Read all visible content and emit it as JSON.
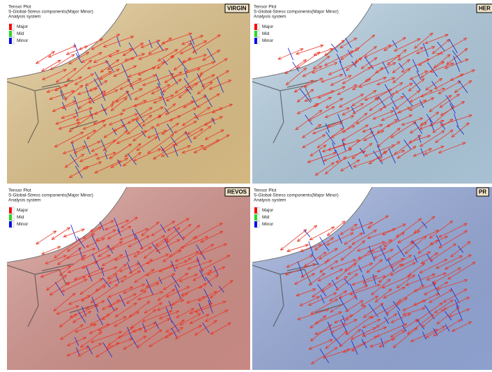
{
  "panels": [
    {
      "label": "VIRGIN",
      "color": "#e6c88c",
      "title": "Tensor Plot",
      "subtitle": "S-Global-Stress components(Major Minor)",
      "system": "Analysis system",
      "legend": [
        "Major",
        "Mid",
        "Minor"
      ]
    },
    {
      "label": "HER",
      "color": "#b6d2e6",
      "title": "Tensor Plot",
      "subtitle": "S-Global-Stress components(Major Minor)",
      "system": "Analysis system",
      "legend": [
        "Major",
        "Mid",
        "Minor"
      ]
    },
    {
      "label": "REVOS",
      "color": "#d9958e",
      "title": "Tensor Plot",
      "subtitle": "S-Global-Stress components(Major Minor)",
      "system": "Analysis system",
      "legend": [
        "Major",
        "Mid",
        "Minor"
      ]
    },
    {
      "label": "PR",
      "color": "#9aaee0",
      "title": "Tensor Plot",
      "subtitle": "S-Global-Stress components(Major Minor)",
      "system": "Analysis system",
      "legend": [
        "Major",
        "Mid",
        "Minor"
      ]
    }
  ]
}
